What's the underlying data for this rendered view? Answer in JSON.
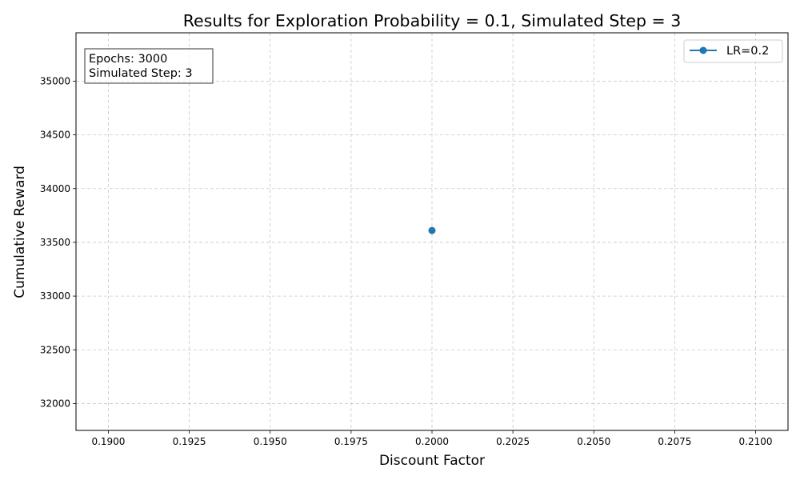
{
  "chart_data": {
    "type": "line",
    "title": "Results for Exploration Probability = 0.1, Simulated Step = 3",
    "xlabel": "Discount Factor",
    "ylabel": "Cumulative Reward",
    "xlim": [
      0.189,
      0.211
    ],
    "ylim": [
      31750,
      35450
    ],
    "x_ticks": [
      "0.1900",
      "0.1925",
      "0.1950",
      "0.1975",
      "0.2000",
      "0.2025",
      "0.2050",
      "0.2075",
      "0.2100"
    ],
    "y_ticks": [
      "32000",
      "32500",
      "33000",
      "33500",
      "34000",
      "34500",
      "35000"
    ],
    "grid": true,
    "legend_position": "top-right",
    "series": [
      {
        "name": "LR=0.2",
        "color": "#1f77b4",
        "x": [
          0.2
        ],
        "y": [
          33610
        ]
      }
    ],
    "annotation": {
      "lines": [
        "Epochs: 3000",
        "Simulated Step: 3"
      ],
      "position": "top-left"
    }
  }
}
